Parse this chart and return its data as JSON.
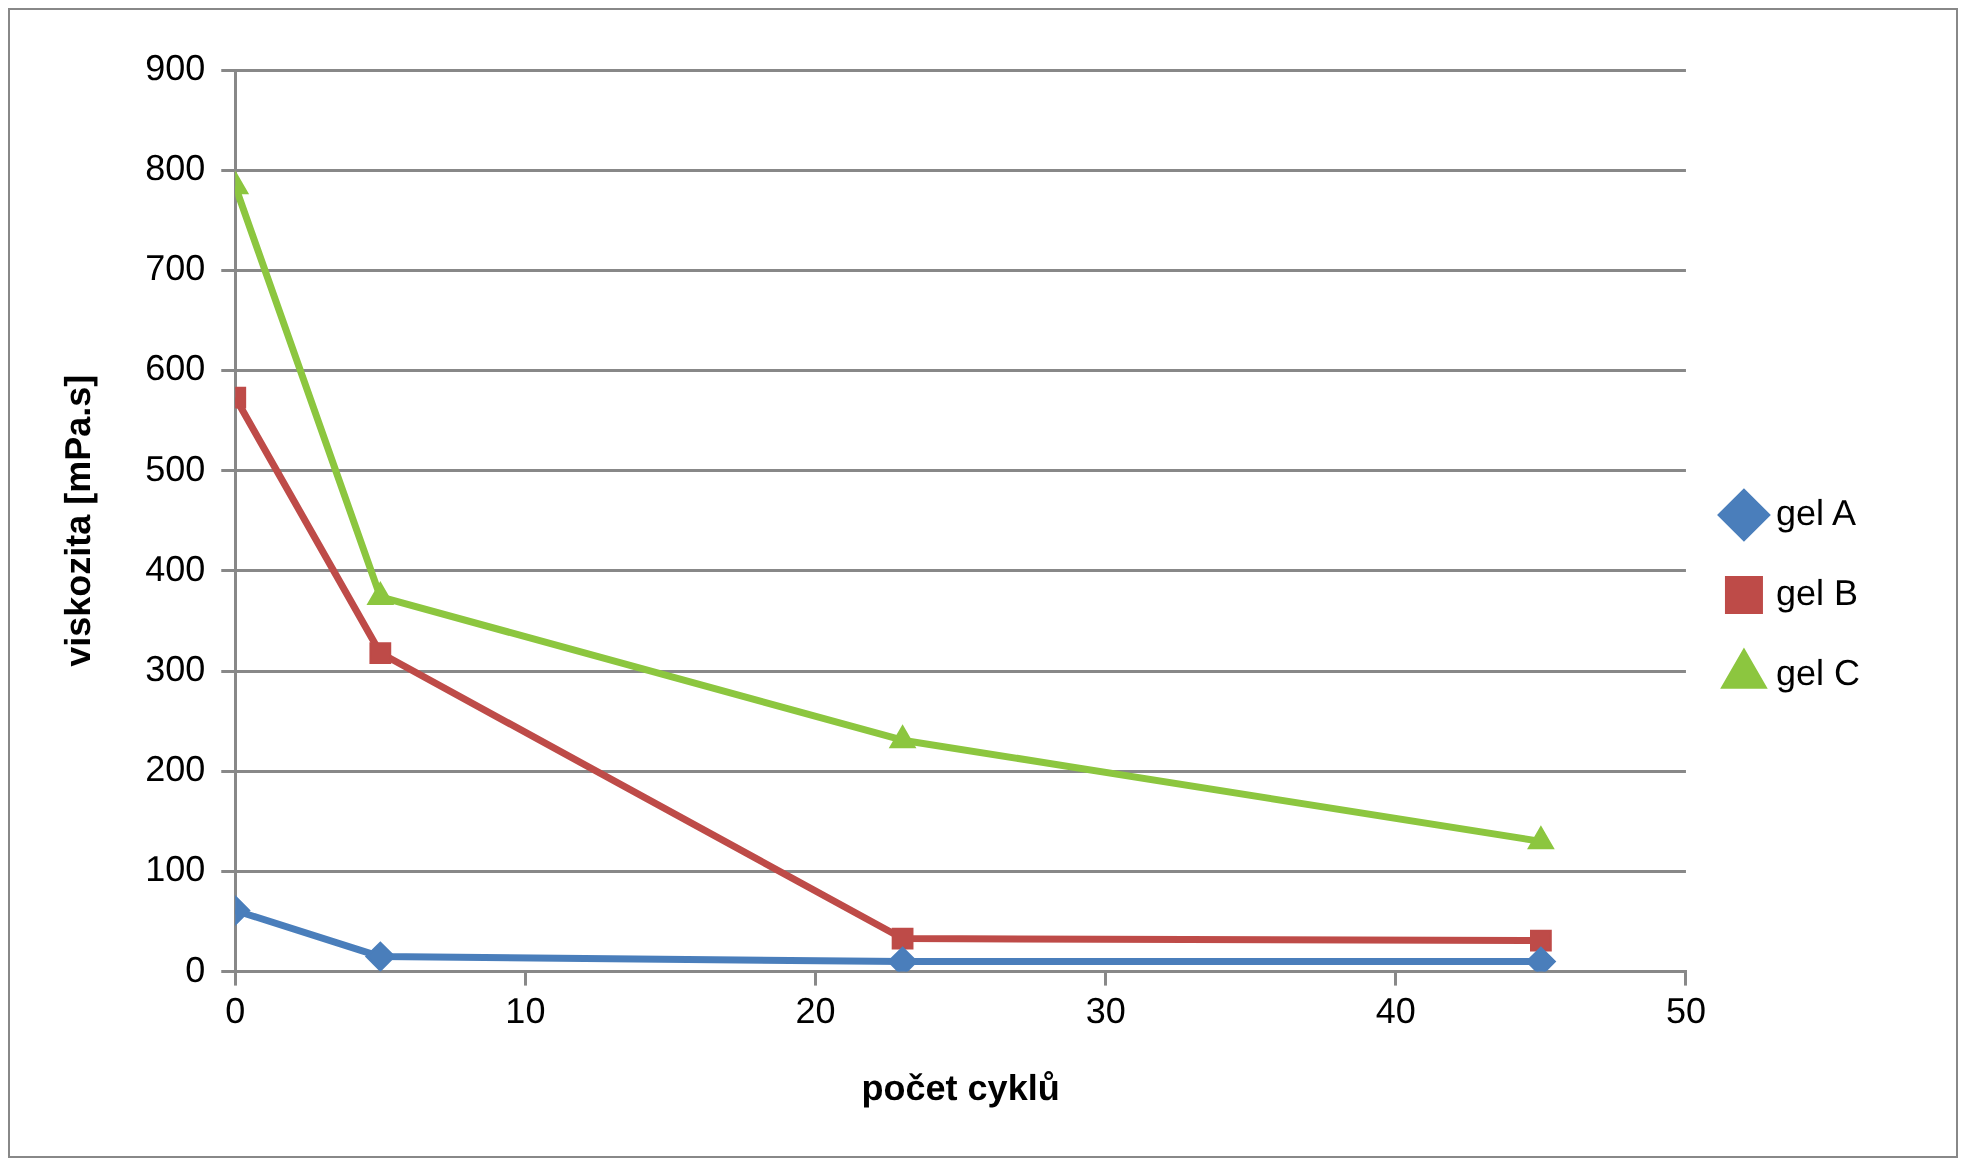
{
  "chart_data": {
    "type": "line",
    "xlabel": "počet cyklů",
    "ylabel": "viskozita [mPa.s]",
    "xlim": [
      0,
      50
    ],
    "xticks": [
      0,
      10,
      20,
      30,
      40,
      50
    ],
    "ylim": [
      0,
      900
    ],
    "yticks": [
      0,
      100,
      200,
      300,
      400,
      500,
      600,
      700,
      800,
      900
    ],
    "grid": "y",
    "legend": "right",
    "x": [
      0,
      5,
      23,
      45
    ],
    "series": [
      {
        "name": "gel A",
        "color": "#4a7ebb",
        "marker": "diamond",
        "values": [
          61,
          15,
          10,
          10
        ]
      },
      {
        "name": "gel B",
        "color": "#be4b48",
        "marker": "square",
        "values": [
          573,
          318,
          33,
          31
        ]
      },
      {
        "name": "gel C",
        "color": "#8cc63f",
        "marker": "triangle",
        "values": [
          784,
          374,
          231,
          130
        ]
      }
    ]
  }
}
